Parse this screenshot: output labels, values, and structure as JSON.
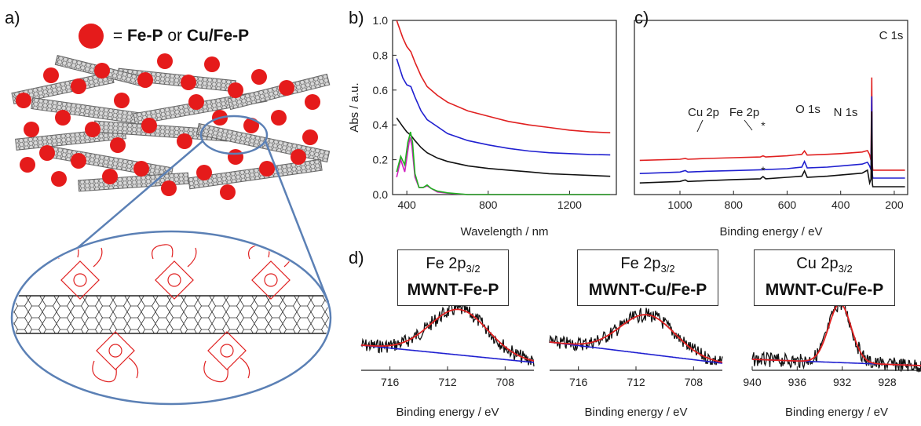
{
  "panels": {
    "a": {
      "label": "a)",
      "legend_eq": "=",
      "legend_fep": "Fe-P",
      "legend_or": "or",
      "legend_cufep": "Cu/Fe-P",
      "marker_color": "#e51b1b"
    },
    "b": {
      "label": "b)"
    },
    "c": {
      "label": "c)"
    },
    "d": {
      "label": "d)"
    }
  },
  "chart_data": [
    {
      "id": "b",
      "type": "line",
      "xlabel": "Wavelength / nm",
      "ylabel": "Abs / a.u.",
      "xlim": [
        330,
        1430
      ],
      "ylim": [
        0,
        1.0
      ],
      "xticks": [
        400,
        800,
        1200
      ],
      "yticks": [
        "0.0",
        "0.2",
        "0.4",
        "0.6",
        "0.8",
        "1.0"
      ],
      "series": [
        {
          "color": "#e02020",
          "x": [
            350,
            380,
            400,
            420,
            440,
            470,
            500,
            550,
            600,
            700,
            800,
            900,
            1000,
            1100,
            1200,
            1300,
            1400
          ],
          "values": [
            1.0,
            0.9,
            0.85,
            0.82,
            0.76,
            0.68,
            0.62,
            0.57,
            0.53,
            0.48,
            0.45,
            0.42,
            0.4,
            0.385,
            0.37,
            0.36,
            0.355
          ]
        },
        {
          "color": "#2020d0",
          "x": [
            350,
            380,
            400,
            420,
            440,
            470,
            500,
            550,
            600,
            700,
            800,
            900,
            1000,
            1100,
            1200,
            1300,
            1400
          ],
          "values": [
            0.78,
            0.67,
            0.63,
            0.62,
            0.56,
            0.48,
            0.43,
            0.39,
            0.35,
            0.31,
            0.285,
            0.265,
            0.25,
            0.24,
            0.235,
            0.23,
            0.228
          ]
        },
        {
          "color": "#111111",
          "x": [
            350,
            380,
            400,
            420,
            440,
            470,
            500,
            550,
            600,
            700,
            800,
            900,
            1000,
            1100,
            1200,
            1300,
            1400
          ],
          "values": [
            0.44,
            0.39,
            0.36,
            0.34,
            0.31,
            0.27,
            0.24,
            0.21,
            0.19,
            0.165,
            0.15,
            0.14,
            0.13,
            0.12,
            0.115,
            0.11,
            0.105
          ]
        },
        {
          "color": "#d020c0",
          "x": [
            350,
            370,
            390,
            405,
            415,
            425,
            440,
            460,
            480,
            500,
            520,
            550,
            600,
            650,
            700,
            1400
          ],
          "values": [
            0.1,
            0.2,
            0.13,
            0.25,
            0.33,
            0.28,
            0.1,
            0.04,
            0.04,
            0.05,
            0.035,
            0.015,
            0.008,
            0.003,
            0.0,
            0.0
          ]
        },
        {
          "color": "#20b020",
          "x": [
            350,
            370,
            390,
            405,
            412,
            418,
            428,
            440,
            460,
            480,
            500,
            520,
            550,
            600,
            650,
            700,
            1400
          ],
          "values": [
            0.13,
            0.22,
            0.17,
            0.3,
            0.33,
            0.36,
            0.3,
            0.12,
            0.04,
            0.04,
            0.055,
            0.035,
            0.02,
            0.01,
            0.005,
            0.0,
            0.0
          ]
        }
      ]
    },
    {
      "id": "c",
      "type": "line",
      "xlabel": "Binding energy / eV",
      "xlim": [
        1170,
        150
      ],
      "xticks": [
        1000,
        800,
        600,
        400,
        200
      ],
      "annotations": [
        "Cu 2p",
        "Fe 2p",
        "O 1s",
        "N 1s",
        "C 1s",
        "*",
        "*"
      ],
      "series": [
        {
          "color": "#e02020",
          "x": [
            1150,
            1000,
            980,
            970,
            900,
            800,
            700,
            690,
            680,
            600,
            545,
            535,
            525,
            450,
            400,
            320,
            300,
            292,
            287,
            284,
            282,
            280,
            270,
            250,
            200,
            160
          ],
          "values": [
            0.7,
            0.73,
            0.75,
            0.73,
            0.75,
            0.77,
            0.79,
            0.82,
            0.79,
            0.82,
            0.86,
            0.95,
            0.84,
            0.86,
            0.88,
            0.92,
            0.96,
            0.85,
            0.7,
            2.9,
            0.6,
            0.44,
            0.44,
            0.44,
            0.44,
            0.44
          ]
        },
        {
          "color": "#2020d0",
          "x": [
            1150,
            1000,
            980,
            970,
            900,
            800,
            700,
            600,
            545,
            535,
            525,
            450,
            400,
            320,
            300,
            292,
            287,
            284,
            282,
            280,
            270,
            250,
            200,
            160
          ],
          "values": [
            0.35,
            0.39,
            0.43,
            0.39,
            0.41,
            0.43,
            0.45,
            0.48,
            0.52,
            0.67,
            0.5,
            0.52,
            0.55,
            0.6,
            0.65,
            0.55,
            0.45,
            2.4,
            0.35,
            0.23,
            0.23,
            0.23,
            0.23,
            0.23
          ]
        },
        {
          "color": "#111111",
          "x": [
            1150,
            1000,
            980,
            970,
            900,
            800,
            700,
            690,
            680,
            600,
            545,
            535,
            525,
            450,
            400,
            320,
            300,
            292,
            287,
            284,
            282,
            280,
            270,
            250,
            200,
            160
          ],
          "values": [
            0.1,
            0.14,
            0.18,
            0.14,
            0.16,
            0.19,
            0.21,
            0.27,
            0.21,
            0.25,
            0.28,
            0.42,
            0.25,
            0.28,
            0.31,
            0.36,
            0.44,
            0.1,
            0.2,
            2.0,
            0.1,
            0.0,
            0.0,
            0.0,
            0.0,
            0.0
          ]
        }
      ]
    },
    {
      "id": "d1",
      "type": "line",
      "box_line1": "Fe 2p",
      "box_sub": "3/2",
      "box_line2": "MWNT-Fe-P",
      "xlabel": "Binding energy / eV",
      "xlim": [
        718,
        706
      ],
      "xticks": [
        716,
        712,
        708
      ]
    },
    {
      "id": "d2",
      "type": "line",
      "box_line1": "Fe 2p",
      "box_sub": "3/2",
      "box_line2": "MWNT-Cu/Fe-P",
      "xlabel": "Binding energy / eV",
      "xlim": [
        718,
        706
      ],
      "xticks": [
        716,
        712,
        708
      ]
    },
    {
      "id": "d3",
      "type": "line",
      "box_line1": "Cu 2p",
      "box_sub": "3/2",
      "box_line2": "MWNT-Cu/Fe-P",
      "xlabel": "Binding energy / eV",
      "xlim": [
        940,
        925
      ],
      "xticks": [
        940,
        936,
        932,
        928
      ]
    }
  ]
}
